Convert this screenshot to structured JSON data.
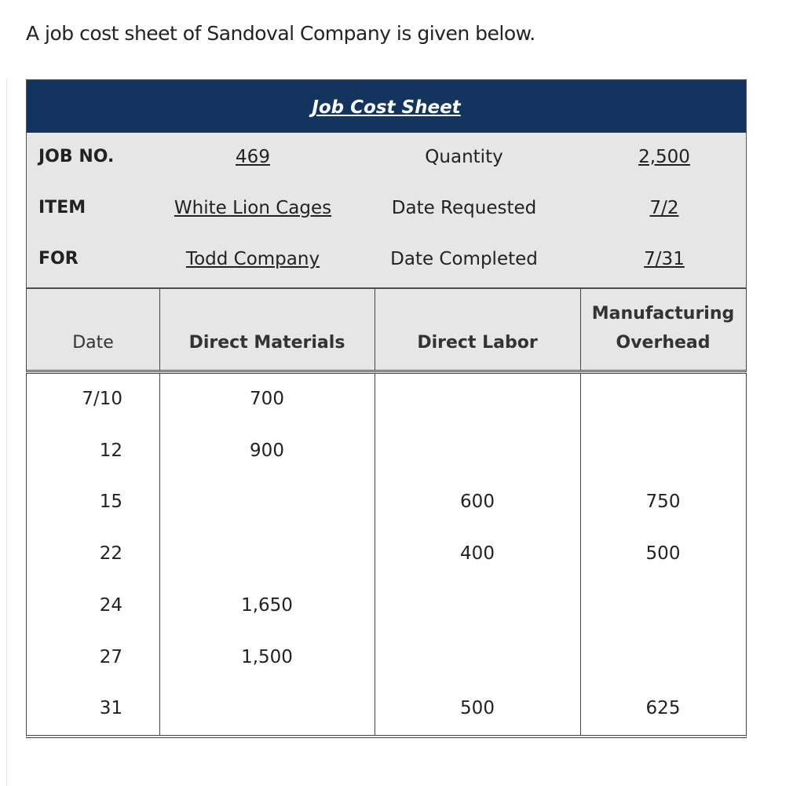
{
  "intro": "A job cost sheet of Sandoval Company is given below.",
  "sheet": {
    "title": "Job Cost Sheet",
    "info": [
      [
        "JOB NO.",
        "469",
        "Quantity",
        "2,500"
      ],
      [
        "ITEM",
        "White Lion Cages",
        "Date Requested",
        "7/2"
      ],
      [
        "FOR",
        "Todd Company",
        "Date Completed",
        "7/31"
      ]
    ],
    "columns": [
      "Date",
      "Direct Materials",
      "Direct Labor",
      "Manufacturing Overhead"
    ],
    "rows": [
      [
        "7/10",
        "700",
        null,
        null
      ],
      [
        "12",
        "900",
        null,
        null
      ],
      [
        "15",
        null,
        "600",
        "750"
      ],
      [
        "22",
        null,
        "400",
        "500"
      ],
      [
        "24",
        "1,650",
        null,
        null
      ],
      [
        "27",
        "1,500",
        null,
        null
      ],
      [
        "31",
        null,
        "500",
        "625"
      ]
    ]
  }
}
